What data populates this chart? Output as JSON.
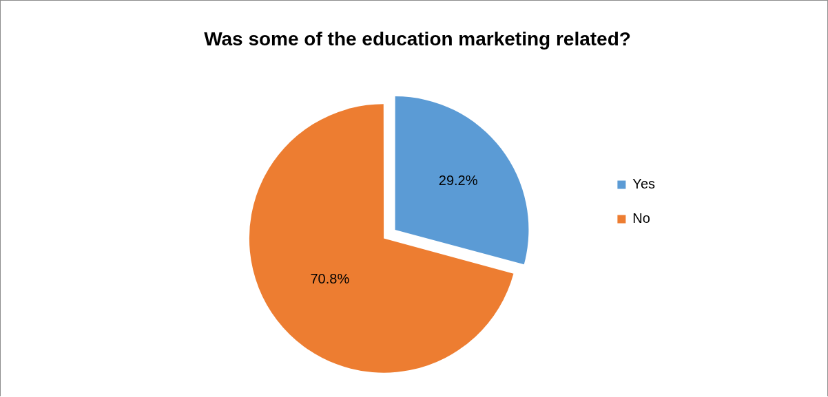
{
  "chart_data": {
    "type": "pie",
    "title": "Was some of the education marketing related?",
    "categories": [
      "Yes",
      "No"
    ],
    "values": [
      29.2,
      70.8
    ],
    "colors": [
      "#5b9bd5",
      "#ed7d31"
    ],
    "value_labels": [
      "29.2%",
      "70.8%"
    ],
    "legend": "right"
  }
}
